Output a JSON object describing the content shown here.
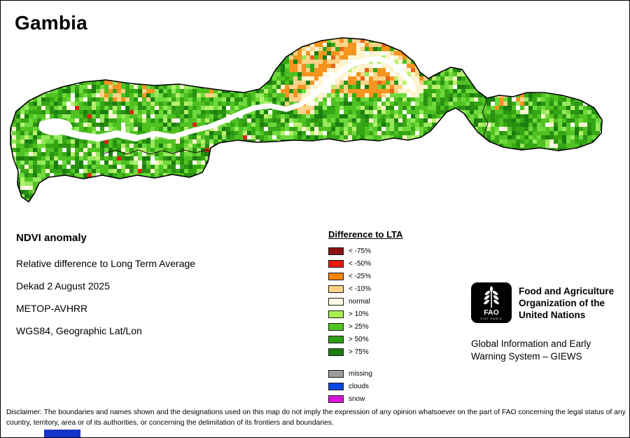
{
  "page": {
    "title": "Gambia"
  },
  "info": {
    "heading": "NDVI anomaly",
    "lines": [
      "Relative difference to Long Term Average",
      "Dekad 2 August 2025",
      "METOP-AVHRR",
      "WGS84, Geographic Lat/Lon"
    ]
  },
  "legend": {
    "title": "Difference to LTA",
    "items": [
      {
        "label": "< -75%",
        "color": "#8b1010"
      },
      {
        "label": "< -50%",
        "color": "#ea1c10"
      },
      {
        "label": "< -25%",
        "color": "#f98410"
      },
      {
        "label": "< -10%",
        "color": "#fcd389"
      },
      {
        "label": "normal",
        "color": "#fffce5"
      },
      {
        "label": "> 10%",
        "color": "#a9ef4d"
      },
      {
        "label": "> 25%",
        "color": "#52c41f"
      },
      {
        "label": "> 50%",
        "color": "#2f9f12"
      },
      {
        "label": "> 75%",
        "color": "#1b7e0e"
      }
    ],
    "extra": [
      {
        "label": "missing",
        "color": "#9c9c9c"
      },
      {
        "label": "clouds",
        "color": "#0a46e6"
      },
      {
        "label": "snow",
        "color": "#d916d9"
      }
    ]
  },
  "org": {
    "logo_text": "FAO",
    "logo_motto": "FIAT PANIS",
    "fao_lines": [
      "Food and Agriculture",
      "Organization of the",
      "United Nations"
    ],
    "giews_lines": [
      "Global Information and Early",
      "Warning System – GIEWS"
    ]
  },
  "disclaimer": "Disclaimer: The boundaries and names shown and the designations used on this map do not imply the expression of any opinion whatsoever on the part of FAO concerning the legal status of any country, territory, area or of its authorities, or concerning the delimitation of its frontiers and boundaries.",
  "footer": {
    "artifact_color": "#1633cc"
  },
  "map": {
    "outline_color": "#000000",
    "river_color": "#ffffff",
    "border_color": "#1a1a1a",
    "palette": {
      "greens": [
        "#4fc222",
        "#35a715",
        "#6ed93c",
        "#1c7e10",
        "#95e95d",
        "#2a9212"
      ],
      "lime": "#b9ef6e",
      "cream": "#fdf4cf",
      "white": "#ffffff",
      "orange": "#f5941f",
      "tan": "#fcd389",
      "red_orange": "#e8641a",
      "red": "#d92810"
    }
  }
}
